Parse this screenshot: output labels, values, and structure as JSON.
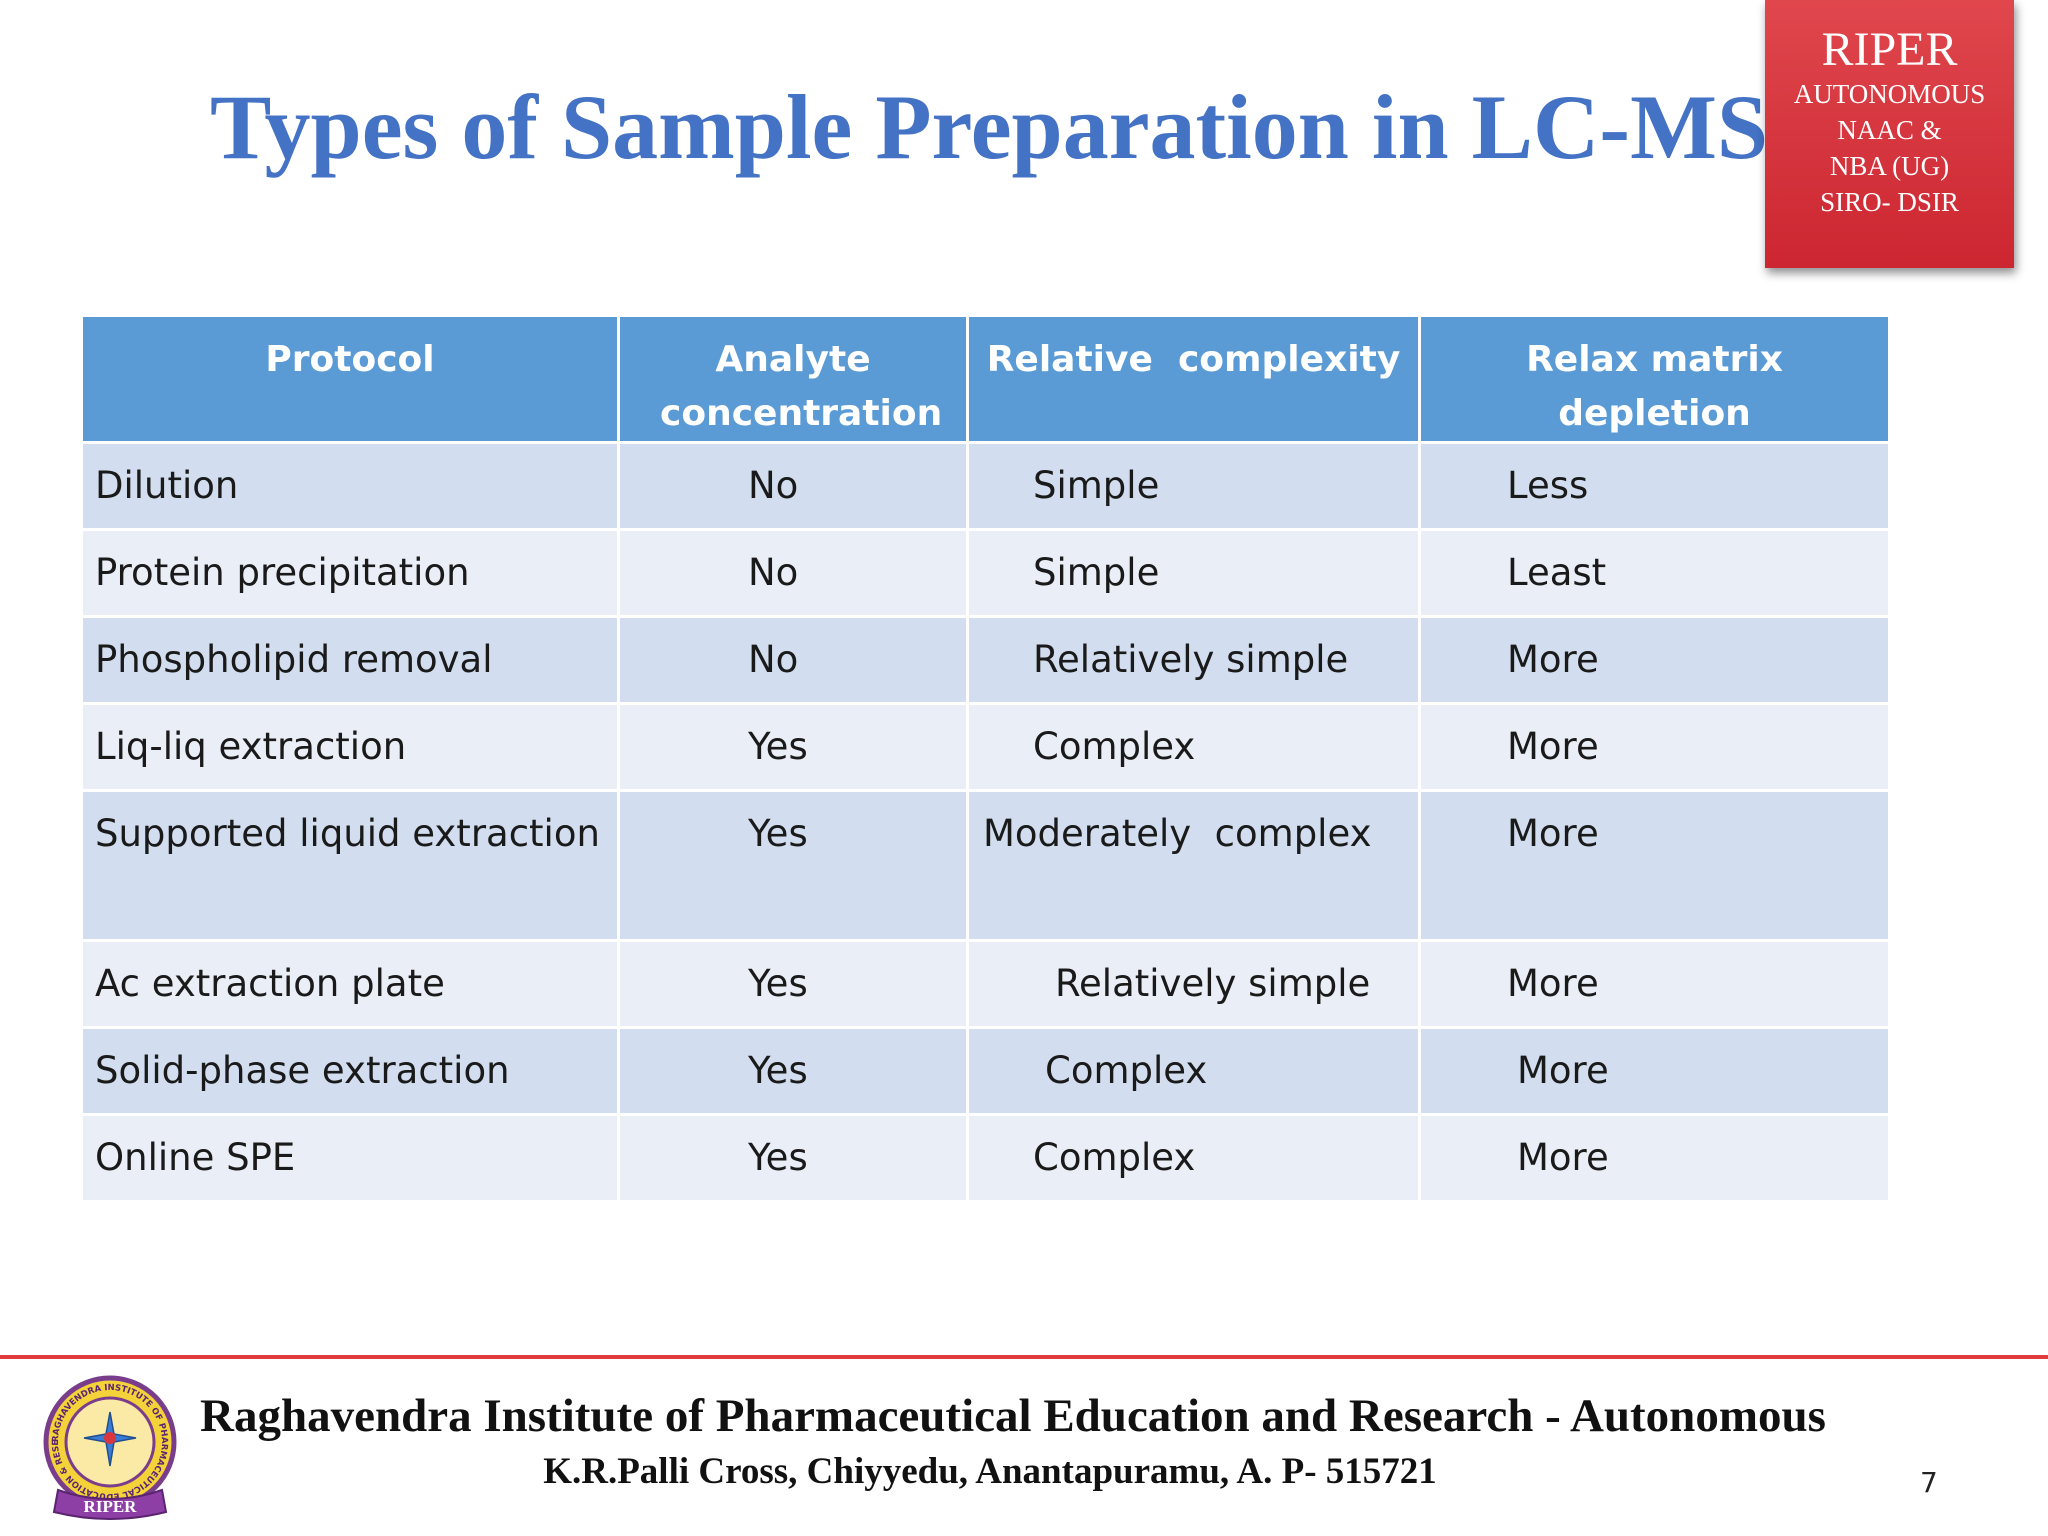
{
  "slide": {
    "title": "Types of Sample Preparation in LC-MS",
    "page_number": "7"
  },
  "badge": {
    "name": "RIPER",
    "lines": [
      "AUTONOMOUS",
      "NAAC &",
      "NBA (UG)",
      "SIRO- DSIR"
    ]
  },
  "table": {
    "headers": {
      "protocol": "Protocol",
      "analyte": "Analyte concentration",
      "complexity": "Relative  complexity",
      "relax": "Relax matrix depletion"
    },
    "rows": [
      {
        "protocol": "Dilution",
        "analyte": "No",
        "complexity": "Simple",
        "relax": "Less"
      },
      {
        "protocol": "Protein precipitation",
        "analyte": "No",
        "complexity": "Simple",
        "relax": "Least"
      },
      {
        "protocol": "Phospholipid removal",
        "analyte": "No",
        "complexity": "Relatively simple",
        "relax": "More"
      },
      {
        "protocol": "Liq-liq extraction",
        "analyte": "Yes",
        "complexity": "Complex",
        "relax": "More"
      },
      {
        "protocol": "Supported liquid extraction",
        "analyte": "Yes",
        "complexity": "Moderately  complex",
        "relax": "More"
      },
      {
        "protocol": "Ac extraction plate",
        "analyte": "Yes",
        "complexity": "Relatively simple",
        "relax": "More"
      },
      {
        "protocol": "Solid-phase extraction",
        "analyte": "Yes",
        "complexity": "Complex",
        "relax": "More"
      },
      {
        "protocol": "Online SPE",
        "analyte": "Yes",
        "complexity": "Complex",
        "relax": "More"
      }
    ]
  },
  "footer": {
    "institute": "Raghavendra Institute of Pharmaceutical Education and Research - Autonomous",
    "address": "K.R.Palli Cross, Chiyyedu, Anantapuramu, A. P- 515721",
    "seal_text": "RIPER",
    "seal_ring_text": "RAGHAVENDRA INSTITUTE OF PHARMACEUTICAL EDUCATION & RESEARCH · ANANTAPUR"
  },
  "colors": {
    "title": "#4472C4",
    "header": "#5b9bd5",
    "row_odd": "#d2deef",
    "row_even": "#eaeff7",
    "badge": "#d9363e",
    "footer_line": "#e03a3a"
  },
  "icons": {
    "seal": "institute-seal-icon"
  }
}
